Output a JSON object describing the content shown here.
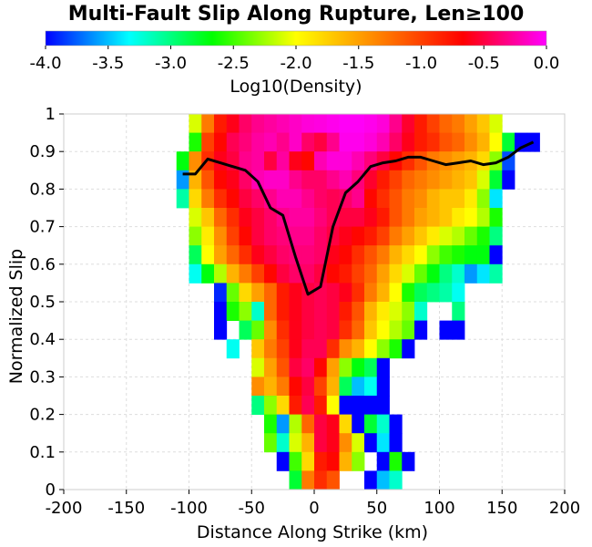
{
  "chart_data": {
    "type": "heatmap",
    "title": "Multi-Fault Slip Along Rupture, Len≥100",
    "xlabel": "Distance Along Strike (km)",
    "ylabel": "Normalized Slip",
    "xlim": [
      -200,
      200
    ],
    "ylim": [
      0,
      1
    ],
    "x_ticks": [
      "-200",
      "-150",
      "-100",
      "-50",
      "0",
      "50",
      "100",
      "150",
      "200"
    ],
    "y_ticks": [
      "0",
      "0.1",
      "0.2",
      "0.3",
      "0.4",
      "0.5",
      "0.6",
      "0.7",
      "0.8",
      "0.9",
      "1"
    ],
    "colorbar": {
      "label": "Log10(Density)",
      "range": [
        -4.0,
        0.0
      ],
      "ticks": [
        "-4.0",
        "-3.5",
        "-3.0",
        "-2.5",
        "-2.0",
        "-1.5",
        "-1.0",
        "-0.5",
        "0.0"
      ],
      "colors": [
        "#0000ff",
        "#00ffff",
        "#00ff00",
        "#ffff00",
        "#ff8000",
        "#ff0000",
        "#ff00ff"
      ]
    },
    "grid": true,
    "bin_width_km": 10,
    "bin_height_slip": 0.05,
    "heatmap_rows": [
      {
        "slip": 0.975,
        "x_start": -100,
        "values": [
          -2.1,
          -1.3,
          -0.8,
          -0.6,
          -0.4,
          -0.3,
          -0.25,
          -0.2,
          -0.15,
          -0.1,
          -0.08,
          -0.05,
          -0.02,
          -0.02,
          -0.05,
          -0.1,
          -0.3,
          -0.55,
          -0.8,
          -1.0,
          -1.2,
          -1.3,
          -1.5,
          -1.7,
          -2.1
        ]
      },
      {
        "slip": 0.925,
        "x_start": -100,
        "values": [
          -2.6,
          -1.0,
          -0.7,
          -0.45,
          -0.35,
          -0.25,
          -0.2,
          -0.3,
          -0.15,
          -0.4,
          -0.5,
          -0.3,
          -0.05,
          -0.05,
          -0.1,
          -0.2,
          -0.4,
          -0.6,
          -0.8,
          -0.9,
          -1.1,
          -1.2,
          -1.4,
          -1.6,
          -2.0,
          -2.8,
          -4.0,
          -4.0
        ]
      },
      {
        "slip": 0.875,
        "x_start": -110,
        "values": [
          -2.7,
          -1.4,
          -0.9,
          -0.6,
          -0.5,
          -0.3,
          -0.25,
          -0.5,
          -0.25,
          -0.6,
          -0.7,
          -0.2,
          -0.1,
          -0.1,
          -0.2,
          -0.35,
          -0.5,
          -0.7,
          -0.9,
          -1.1,
          -1.3,
          -1.4,
          -1.5,
          -1.6,
          -1.8,
          -2.3,
          -3.8
        ]
      },
      {
        "slip": 0.825,
        "x_start": -110,
        "values": [
          -3.6,
          -1.6,
          -1.1,
          -0.7,
          -0.6,
          -0.4,
          -0.2,
          -0.15,
          -0.15,
          -0.3,
          -0.4,
          -0.4,
          -0.3,
          -0.2,
          -0.35,
          -0.55,
          -0.8,
          -1.0,
          -1.2,
          -1.3,
          -1.4,
          -1.5,
          -1.6,
          -1.7,
          -2.1,
          -2.8,
          -4.0
        ]
      },
      {
        "slip": 0.775,
        "x_start": -110,
        "values": [
          -3.1,
          -1.8,
          -1.3,
          -0.9,
          -0.7,
          -0.5,
          -0.4,
          -0.3,
          -0.2,
          -0.2,
          -0.3,
          -0.4,
          -0.45,
          -0.4,
          -0.3,
          -0.7,
          -0.9,
          -1.1,
          -1.3,
          -1.4,
          -1.6,
          -1.7,
          -1.7,
          -1.9,
          -2.3,
          -3.4
        ]
      },
      {
        "slip": 0.725,
        "x_start": -100,
        "values": [
          -2.1,
          -1.7,
          -1.2,
          -0.9,
          -0.6,
          -0.5,
          -0.4,
          -0.3,
          -0.25,
          -0.25,
          -0.35,
          -0.45,
          -0.5,
          -0.5,
          -0.6,
          -0.8,
          -1.1,
          -1.3,
          -1.5,
          -1.6,
          -1.7,
          -1.9,
          -2.0,
          -2.2,
          -2.6
        ]
      },
      {
        "slip": 0.675,
        "x_start": -100,
        "values": [
          -2.3,
          -1.9,
          -1.4,
          -1.0,
          -0.7,
          -0.5,
          -0.4,
          -0.35,
          -0.3,
          -0.3,
          -0.4,
          -0.5,
          -0.6,
          -0.7,
          -0.8,
          -1.0,
          -1.3,
          -1.5,
          -1.7,
          -1.9,
          -2.1,
          -2.2,
          -2.4,
          -2.6,
          -3.0
        ]
      },
      {
        "slip": 0.625,
        "x_start": -100,
        "values": [
          -2.9,
          -2.0,
          -1.5,
          -1.2,
          -0.9,
          -0.6,
          -0.5,
          -0.4,
          -0.35,
          -0.35,
          -0.4,
          -0.6,
          -0.7,
          -0.9,
          -1.1,
          -1.3,
          -1.6,
          -1.8,
          -2.0,
          -2.3,
          -2.5,
          -2.6,
          -2.7,
          -2.7,
          -4.0
        ]
      },
      {
        "slip": 0.575,
        "x_start": -100,
        "values": [
          -3.3,
          -2.7,
          -2.2,
          -1.6,
          -1.3,
          -1.0,
          -0.7,
          -0.5,
          -0.4,
          -0.4,
          -0.5,
          -0.7,
          -0.8,
          -1.0,
          -1.2,
          -1.5,
          -1.8,
          -2.1,
          -2.4,
          -2.7,
          -3.0,
          -3.2,
          -3.6,
          -3.4,
          -3.1
        ]
      },
      {
        "slip": 0.525,
        "x_start": -80,
        "values": [
          -3.9,
          -2.4,
          -1.8,
          -1.5,
          -1.2,
          -0.8,
          -0.6,
          -0.5,
          -0.45,
          -0.5,
          -0.6,
          -0.9,
          -1.3,
          -1.6,
          -2.0,
          -2.6,
          -2.9,
          -3.0,
          -3.1,
          -3.3
        ]
      },
      {
        "slip": 0.475,
        "x_start": -80,
        "values": [
          -4.0,
          -2.6,
          -2.3,
          -3.2,
          -1.2,
          -0.8,
          -0.6,
          -0.5,
          -0.45,
          -0.5,
          -0.8,
          -1.1,
          -1.6,
          -1.9,
          -2.1,
          -2.3,
          -3.2,
          null,
          null,
          -3.0
        ]
      },
      {
        "slip": 0.425,
        "x_start": -80,
        "values": [
          -4.0,
          null,
          -2.9,
          -2.4,
          -1.4,
          -0.9,
          -0.6,
          -0.5,
          -0.45,
          -0.5,
          -0.9,
          -1.2,
          -1.7,
          -2.0,
          -2.2,
          -2.4,
          -4.0,
          null,
          -4.0,
          -4.0
        ]
      },
      {
        "slip": 0.375,
        "x_start": -70,
        "values": [
          -3.3,
          null,
          -1.7,
          -1.3,
          -1.0,
          -0.6,
          -0.45,
          -0.45,
          -0.9,
          -1.4,
          -1.6,
          -2.0,
          -2.3,
          -2.6,
          -4.0
        ]
      },
      {
        "slip": 0.325,
        "x_start": -50,
        "values": [
          -2.1,
          -1.5,
          -1.1,
          -0.5,
          -0.4,
          -0.7,
          -1.5,
          -2.3,
          -2.7,
          -2.9,
          -4.0
        ]
      },
      {
        "slip": 0.275,
        "x_start": -50,
        "values": [
          -1.4,
          -1.6,
          -1.3,
          -0.7,
          -0.5,
          -1.0,
          -1.6,
          -2.9,
          -3.5,
          -3.3,
          -4.0
        ]
      },
      {
        "slip": 0.225,
        "x_start": -50,
        "values": [
          -3.0,
          -2.3,
          -1.8,
          -0.8,
          -0.45,
          -0.8,
          -2.0,
          -4.0,
          -4.0,
          -4.0,
          -4.0
        ]
      },
      {
        "slip": 0.175,
        "x_start": -40,
        "values": [
          -2.6,
          -3.6,
          -2.2,
          -1.2,
          -0.5,
          -0.6,
          -1.8,
          -4.0,
          -2.8,
          -3.2,
          -4.0
        ]
      },
      {
        "slip": 0.125,
        "x_start": -40,
        "values": [
          -2.4,
          -3.2,
          -2.1,
          -1.6,
          -0.5,
          -0.6,
          -1.4,
          -2.1,
          -4.0,
          -3.4,
          -4.0
        ]
      },
      {
        "slip": 0.075,
        "x_start": -30,
        "values": [
          -4.0,
          -2.5,
          -1.8,
          -0.8,
          -0.7,
          -1.6,
          -2.3,
          null,
          -4.0,
          -2.6,
          -4.0
        ]
      },
      {
        "slip": 0.025,
        "x_start": -20,
        "values": [
          -2.8,
          -1.3,
          -0.9,
          -1.1,
          null,
          null,
          -4.0,
          -3.5,
          -3.2
        ]
      }
    ],
    "series": [
      {
        "name": "",
        "color": "#000000",
        "x": [
          -105,
          -95,
          -85,
          -75,
          -65,
          -55,
          -45,
          -35,
          -25,
          -15,
          -5,
          5,
          15,
          25,
          35,
          45,
          55,
          65,
          75,
          85,
          95,
          105,
          115,
          125,
          135,
          145,
          155,
          165,
          175
        ],
        "y": [
          0.84,
          0.84,
          0.88,
          0.87,
          0.86,
          0.85,
          0.82,
          0.75,
          0.73,
          0.62,
          0.52,
          0.54,
          0.7,
          0.79,
          0.82,
          0.86,
          0.87,
          0.875,
          0.885,
          0.885,
          0.875,
          0.865,
          0.87,
          0.875,
          0.865,
          0.87,
          0.885,
          0.91,
          0.925
        ]
      }
    ]
  }
}
